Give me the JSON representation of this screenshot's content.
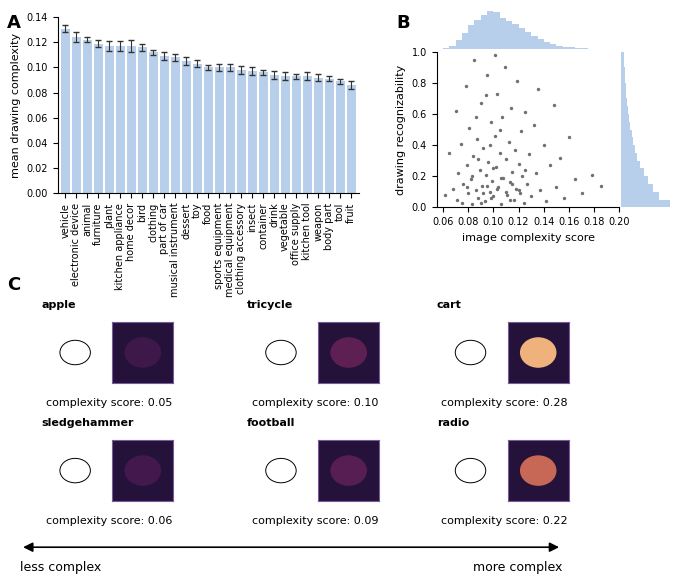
{
  "chart_data": [
    {
      "type": "bar",
      "panel": "A",
      "categories": [
        "vehicle",
        "electronic device",
        "animal",
        "furniture",
        "plant",
        "kitchen appliance",
        "home decor",
        "bird",
        "clothing",
        "part of car",
        "musical instrument",
        "dessert",
        "toy",
        "food",
        "sports equipment",
        "medical equipment",
        "clothing accessory",
        "insect",
        "container",
        "drink",
        "vegetable",
        "office supply",
        "kitchen tool",
        "weapon",
        "body part",
        "tool",
        "fruit"
      ],
      "values": [
        0.131,
        0.124,
        0.122,
        0.119,
        0.117,
        0.117,
        0.117,
        0.116,
        0.112,
        0.109,
        0.108,
        0.105,
        0.103,
        0.1,
        0.1,
        0.1,
        0.098,
        0.097,
        0.096,
        0.094,
        0.093,
        0.093,
        0.093,
        0.092,
        0.091,
        0.089,
        0.086
      ],
      "errors": [
        0.003,
        0.004,
        0.002,
        0.003,
        0.004,
        0.004,
        0.005,
        0.003,
        0.002,
        0.003,
        0.003,
        0.003,
        0.003,
        0.002,
        0.003,
        0.003,
        0.003,
        0.003,
        0.002,
        0.003,
        0.003,
        0.002,
        0.003,
        0.003,
        0.002,
        0.002,
        0.003
      ],
      "color": "#b7cfea",
      "y_label": "mean drawing complexity",
      "ylim": [
        0.0,
        0.14
      ],
      "yticks": [
        {
          "value": 0.0,
          "label": "0.00"
        },
        {
          "value": 0.02,
          "label": "0.02"
        },
        {
          "value": 0.04,
          "label": "0.04"
        },
        {
          "value": 0.06,
          "label": "0.06"
        },
        {
          "value": 0.08,
          "label": "0.08"
        },
        {
          "value": 0.1,
          "label": "0.10"
        },
        {
          "value": 0.12,
          "label": "0.12"
        },
        {
          "value": 0.14,
          "label": "0.14"
        }
      ]
    },
    {
      "type": "scatter",
      "panel": "B",
      "x": [
        0.062,
        0.065,
        0.068,
        0.07,
        0.071,
        0.072,
        0.074,
        0.075,
        0.076,
        0.078,
        0.079,
        0.08,
        0.081,
        0.082,
        0.083,
        0.084,
        0.085,
        0.086,
        0.087,
        0.088,
        0.089,
        0.09,
        0.091,
        0.092,
        0.093,
        0.094,
        0.095,
        0.096,
        0.097,
        0.098,
        0.099,
        0.1,
        0.101,
        0.102,
        0.103,
        0.104,
        0.105,
        0.106,
        0.107,
        0.108,
        0.109,
        0.11,
        0.111,
        0.112,
        0.113,
        0.114,
        0.115,
        0.116,
        0.117,
        0.118,
        0.119,
        0.12,
        0.121,
        0.122,
        0.123,
        0.124,
        0.125,
        0.127,
        0.128,
        0.13,
        0.132,
        0.134,
        0.135,
        0.137,
        0.14,
        0.142,
        0.145,
        0.148,
        0.15,
        0.153,
        0.156,
        0.16,
        0.165,
        0.17,
        0.178,
        0.185,
        0.083,
        0.088,
        0.092,
        0.095,
        0.098,
        0.1,
        0.103,
        0.106,
        0.11,
        0.113,
        0.09,
        0.097,
        0.105,
        0.115,
        0.12,
        0.125,
        0.079,
        0.086,
        0.094,
        0.101
      ],
      "values": [
        0.08,
        0.35,
        0.12,
        0.62,
        0.05,
        0.22,
        0.41,
        0.03,
        0.15,
        0.78,
        0.27,
        0.09,
        0.51,
        0.18,
        0.02,
        0.33,
        0.95,
        0.11,
        0.44,
        0.06,
        0.24,
        0.67,
        0.14,
        0.38,
        0.04,
        0.21,
        0.85,
        0.29,
        0.1,
        0.55,
        0.17,
        0.07,
        0.46,
        0.26,
        0.73,
        0.13,
        0.35,
        0.02,
        0.58,
        0.19,
        0.9,
        0.31,
        0.08,
        0.42,
        0.16,
        0.64,
        0.23,
        0.05,
        0.37,
        0.12,
        0.81,
        0.28,
        0.09,
        0.49,
        0.2,
        0.03,
        0.61,
        0.15,
        0.34,
        0.07,
        0.53,
        0.22,
        0.76,
        0.11,
        0.4,
        0.04,
        0.27,
        0.66,
        0.13,
        0.32,
        0.06,
        0.45,
        0.18,
        0.09,
        0.21,
        0.14,
        0.2,
        0.31,
        0.09,
        0.14,
        0.06,
        0.25,
        0.12,
        0.19,
        0.1,
        0.05,
        0.03,
        0.4,
        0.5,
        0.15,
        0.11,
        0.24,
        0.13,
        0.58,
        0.72,
        0.98
      ],
      "color": "#707070",
      "x_label": "image complexity score",
      "y_label": "drawing recognizability",
      "xlim": [
        0.055,
        0.2
      ],
      "xticks": [
        {
          "value": 0.06,
          "label": "0.06"
        },
        {
          "value": 0.08,
          "label": "0.08"
        },
        {
          "value": 0.1,
          "label": "0.10"
        },
        {
          "value": 0.12,
          "label": "0.12"
        },
        {
          "value": 0.14,
          "label": "0.14"
        },
        {
          "value": 0.16,
          "label": "0.16"
        },
        {
          "value": 0.18,
          "label": "0.18"
        },
        {
          "value": 0.2,
          "label": "0.20"
        }
      ],
      "ylim": [
        0.0,
        1.0
      ],
      "yticks": [
        0.0,
        0.2,
        0.4,
        0.6,
        0.8,
        1.0
      ]
    },
    {
      "type": "histogram",
      "bins": [
        0.06,
        0.065,
        0.07,
        0.075,
        0.08,
        0.085,
        0.09,
        0.095,
        0.1,
        0.105,
        0.11,
        0.115,
        0.12,
        0.125,
        0.13,
        0.135,
        0.14,
        0.145,
        0.15,
        0.155,
        0.16,
        0.165,
        0.17,
        0.175,
        0.18,
        0.185,
        0.19,
        0.195,
        0.2
      ],
      "counts": [
        5,
        15,
        40,
        70,
        105,
        130,
        150,
        170,
        165,
        140,
        125,
        110,
        95,
        75,
        60,
        45,
        30,
        20,
        15,
        10,
        8,
        5,
        3,
        2,
        2,
        1,
        1,
        1
      ],
      "color": "#b7cfea",
      "xlim": [
        0.055,
        0.2
      ],
      "ylim": [
        0,
        180
      ],
      "tick_labels": false
    },
    {
      "type": "histogram",
      "orientation": "horizontal",
      "bins": [
        0.0,
        0.05,
        0.1,
        0.15,
        0.2,
        0.25,
        0.3,
        0.35,
        0.4,
        0.45,
        0.5,
        0.55,
        0.6,
        0.65,
        0.7,
        0.75,
        0.8,
        0.85,
        0.9,
        0.95,
        1.0
      ],
      "counts": [
        260,
        200,
        170,
        140,
        120,
        100,
        85,
        70,
        60,
        55,
        45,
        40,
        35,
        30,
        25,
        22,
        20,
        18,
        15,
        12
      ],
      "color": "#b7cfea",
      "xlim": [
        0,
        270
      ],
      "ylim": [
        0.0,
        1.0
      ],
      "tick_labels": false
    }
  ],
  "panel_c": {
    "panel": "C",
    "items": [
      {
        "name": "apple",
        "score": 0.05,
        "score_label": "complexity score: 0.05"
      },
      {
        "name": "tricycle",
        "score": 0.1,
        "score_label": "complexity score: 0.10"
      },
      {
        "name": "cart",
        "score": 0.28,
        "score_label": "complexity score: 0.28"
      },
      {
        "name": "sledgehammer",
        "score": 0.06,
        "score_label": "complexity score: 0.06"
      },
      {
        "name": "football",
        "score": 0.09,
        "score_label": "complexity score: 0.09"
      },
      {
        "name": "radio",
        "score": 0.22,
        "score_label": "complexity score: 0.22"
      }
    ],
    "left_label": "less complex",
    "right_label": "more complex"
  }
}
